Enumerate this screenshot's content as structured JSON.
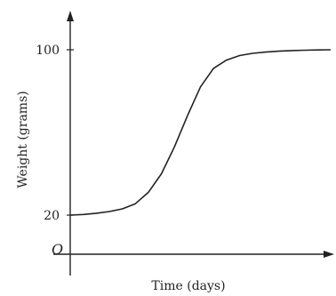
{
  "chart_data": {
    "type": "line",
    "title": "",
    "xlabel": "Time (days)",
    "ylabel": "Weight (grams)",
    "origin_label": "O",
    "y_tick_labels": [
      "20",
      "100"
    ],
    "y_ticks": [
      20,
      100
    ],
    "ylim": [
      0,
      120
    ],
    "xlim": [
      0,
      10
    ],
    "grid": false,
    "legend": "none",
    "series": [
      {
        "x": [
          0,
          0.5,
          1,
          1.5,
          2,
          2.5,
          3,
          3.5,
          4,
          4.5,
          5,
          5.5,
          6,
          6.5,
          7,
          7.5,
          8,
          8.5,
          9,
          9.5,
          10
        ],
        "y": [
          20,
          20.3,
          20.9,
          21.7,
          23,
          25.5,
          31,
          40,
          53,
          68,
          82,
          91,
          95,
          97.2,
          98.3,
          98.9,
          99.3,
          99.6,
          99.8,
          99.9,
          100
        ]
      }
    ],
    "colors": {
      "axis": "#222222",
      "line": "#222222"
    }
  }
}
